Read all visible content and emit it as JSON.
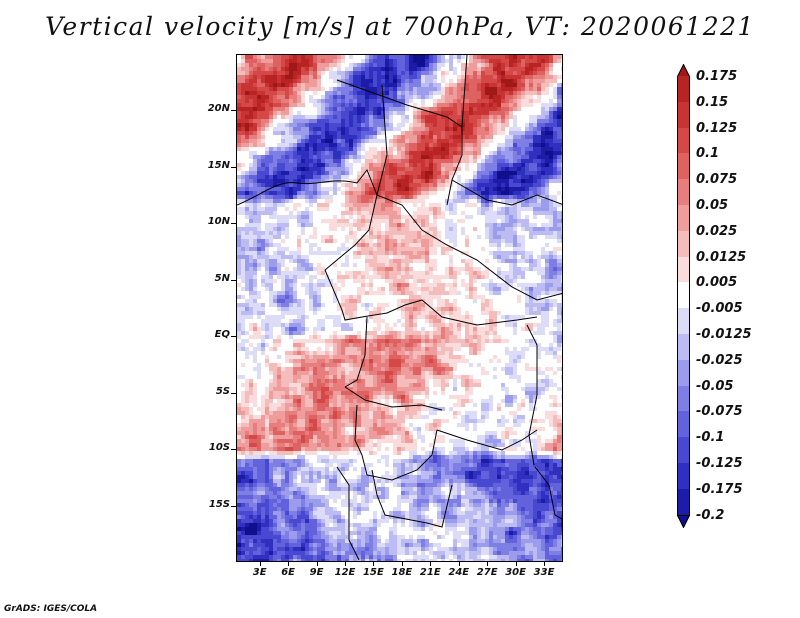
{
  "title": "Vertical velocity [m/s] at 700hPa, VT: 2020061221",
  "footer": "GrADS: IGES/COLA",
  "map": {
    "variable": "Vertical velocity",
    "level": "700hPa",
    "valid_time": "2020061221",
    "lat_labels": [
      "20N",
      "15N",
      "10N",
      "5N",
      "EQ",
      "5S",
      "10S",
      "15S"
    ],
    "lon_labels": [
      "3E",
      "6E",
      "9E",
      "12E",
      "15E",
      "18E",
      "21E",
      "24E",
      "27E",
      "30E",
      "33E"
    ],
    "lat_values": [
      20,
      15,
      10,
      5,
      0,
      -5,
      -10,
      -15
    ],
    "lon_values": [
      3,
      6,
      9,
      12,
      15,
      18,
      21,
      24,
      27,
      30,
      33
    ],
    "lat_range": [
      -20,
      25
    ],
    "lon_range": [
      0.5,
      35
    ]
  },
  "colorbar": {
    "labels": [
      "0.175",
      "0.15",
      "0.125",
      "0.1",
      "0.075",
      "0.05",
      "0.025",
      "0.0125",
      "0.005",
      "-0.005",
      "-0.0125",
      "-0.025",
      "-0.05",
      "-0.075",
      "-0.1",
      "-0.125",
      "-0.175",
      "-0.2"
    ],
    "colors": [
      "#a01818",
      "#b82424",
      "#c83434",
      "#d44848",
      "#de6262",
      "#e67e7e",
      "#ee9c9c",
      "#f5bcbc",
      "#fbdcdc",
      "#ffffff",
      "#dcdcf8",
      "#bcbcf2",
      "#9c9cec",
      "#7e7ee4",
      "#6262dc",
      "#4848d0",
      "#3030c0",
      "#1c1ca8",
      "#10108c"
    ]
  }
}
